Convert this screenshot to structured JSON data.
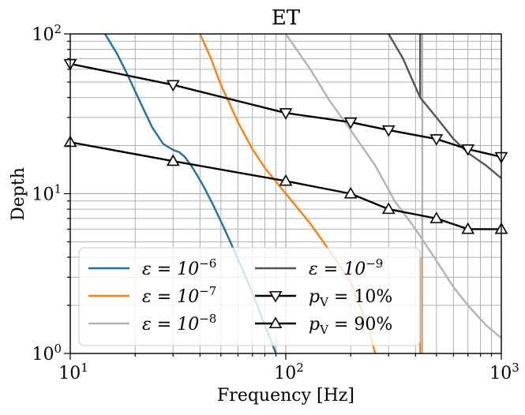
{
  "chart_data": {
    "type": "line",
    "title": "ET",
    "xlabel": "Frequency [Hz]",
    "ylabel": "Depth",
    "xscale": "log",
    "yscale": "log",
    "xlim": [
      10,
      1000
    ],
    "ylim": [
      1,
      100
    ],
    "grid": true,
    "legend_position": "lower-left",
    "x_ticks": [
      {
        "value": 10,
        "label": "10",
        "exp": "1"
      },
      {
        "value": 100,
        "label": "10",
        "exp": "2"
      },
      {
        "value": 1000,
        "label": "10",
        "exp": "3"
      }
    ],
    "y_ticks": [
      {
        "value": 1,
        "label": "10",
        "exp": "0"
      },
      {
        "value": 10,
        "label": "10",
        "exp": "1"
      },
      {
        "value": 100,
        "label": "10",
        "exp": "2"
      }
    ],
    "series": [
      {
        "name": "eps-1e-6",
        "legend_base": "ε = 10",
        "legend_exp": "−6",
        "color": "#1f6fa8",
        "marker": "none",
        "points": [
          [
            14.5,
            100
          ],
          [
            16.5,
            75
          ],
          [
            18.5,
            55
          ],
          [
            21,
            38
          ],
          [
            24,
            26
          ],
          [
            27,
            20.5
          ],
          [
            30,
            18.8
          ],
          [
            32,
            18.2
          ],
          [
            34,
            17
          ],
          [
            37,
            14.5
          ],
          [
            41,
            11.5
          ],
          [
            46,
            8.5
          ],
          [
            52,
            6
          ],
          [
            60,
            3.9
          ],
          [
            70,
            2.4
          ],
          [
            80,
            1.5
          ],
          [
            90,
            1
          ]
        ]
      },
      {
        "name": "eps-1e-7",
        "legend_base": "ε = 10",
        "legend_exp": "−7",
        "color": "#ff7f0e",
        "marker": "none",
        "points": [
          [
            40,
            100
          ],
          [
            45,
            70
          ],
          [
            50,
            48
          ],
          [
            60,
            28
          ],
          [
            70,
            19
          ],
          [
            80,
            14.5
          ],
          [
            100,
            10
          ],
          [
            130,
            6.5
          ],
          [
            170,
            3.9
          ],
          [
            200,
            2.8
          ],
          [
            240,
            1.5
          ],
          [
            260,
            1
          ]
        ],
        "vertical_drop": {
          "x": 420,
          "from": 4,
          "to": 1
        }
      },
      {
        "name": "eps-1e-8",
        "legend_base": "ε = 10",
        "legend_exp": "−8",
        "color": "#b2b2b2",
        "marker": "none",
        "points": [
          [
            100,
            100
          ],
          [
            130,
            60
          ],
          [
            160,
            38
          ],
          [
            200,
            25
          ],
          [
            260,
            15
          ],
          [
            320,
            9
          ],
          [
            400,
            6
          ],
          [
            500,
            3.8
          ],
          [
            600,
            2.6
          ],
          [
            700,
            2
          ],
          [
            850,
            1.5
          ],
          [
            1000,
            1.25
          ]
        ],
        "vertical_drop": {
          "x": 430,
          "from": 100,
          "to": 1
        }
      },
      {
        "name": "eps-1e-9",
        "legend_base": "ε = 10",
        "legend_exp": "−9",
        "color": "#555555",
        "marker": "none",
        "points": [
          [
            300,
            100
          ],
          [
            350,
            70
          ],
          [
            420,
            40
          ],
          [
            500,
            30
          ],
          [
            600,
            22
          ],
          [
            700,
            18
          ],
          [
            850,
            15
          ],
          [
            1000,
            12.5
          ]
        ],
        "vertical_drop": {
          "x": 420,
          "from": 100,
          "to": 40
        }
      },
      {
        "name": "pv-10",
        "legend_base": "p",
        "legend_sub": "V",
        "legend_tail": " = 10%",
        "color": "#000000",
        "marker": "triangle-down",
        "points": [
          [
            10,
            65
          ],
          [
            30,
            48
          ],
          [
            100,
            32
          ],
          [
            200,
            28
          ],
          [
            300,
            25
          ],
          [
            500,
            22
          ],
          [
            700,
            19
          ],
          [
            1000,
            17
          ]
        ]
      },
      {
        "name": "pv-90",
        "legend_base": "p",
        "legend_sub": "V",
        "legend_tail": " = 90%",
        "color": "#000000",
        "marker": "triangle-up",
        "points": [
          [
            10,
            21
          ],
          [
            30,
            16
          ],
          [
            100,
            12
          ],
          [
            200,
            10
          ],
          [
            300,
            8
          ],
          [
            500,
            7
          ],
          [
            700,
            6
          ],
          [
            1000,
            6
          ]
        ]
      }
    ]
  }
}
